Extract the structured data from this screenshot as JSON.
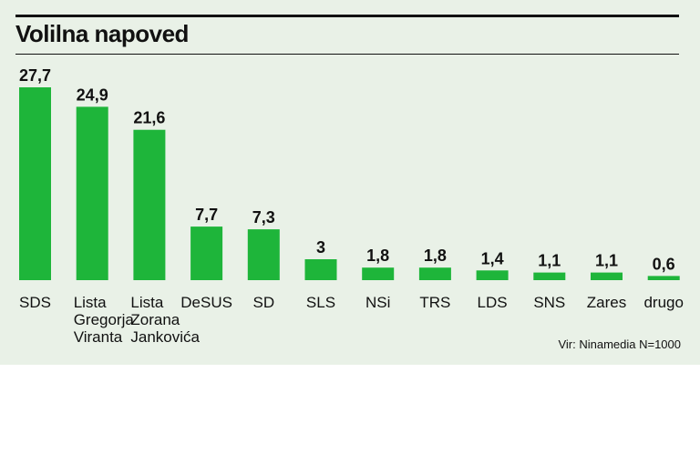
{
  "title": "Volilna napoved",
  "source": "Vir: Ninamedia N=1000",
  "colors": {
    "bar": "#1eb53a",
    "background": "#e9f1e7",
    "text": "#111111"
  },
  "chart_data": {
    "type": "bar",
    "title": "Volilna napoved",
    "xlabel": "",
    "ylabel": "",
    "ylim": [
      0,
      27.7
    ],
    "grid": false,
    "legend": "none",
    "categories": [
      [
        "SDS"
      ],
      [
        "Lista",
        "Gregorja",
        "Viranta"
      ],
      [
        "Lista",
        "Zorana",
        "Jankovića"
      ],
      [
        "DeSUS"
      ],
      [
        "SD"
      ],
      [
        "SLS"
      ],
      [
        "NSi"
      ],
      [
        "TRS"
      ],
      [
        "LDS"
      ],
      [
        "SNS"
      ],
      [
        "Zares"
      ],
      [
        "drugo"
      ]
    ],
    "values": [
      27.7,
      24.9,
      21.6,
      7.7,
      7.3,
      3,
      1.8,
      1.8,
      1.4,
      1.1,
      1.1,
      0.6
    ],
    "value_labels": [
      "27,7",
      "24,9",
      "21,6",
      "7,7",
      "7,3",
      "3",
      "1,8",
      "1,8",
      "1,4",
      "1,1",
      "1,1",
      "0,6"
    ]
  }
}
